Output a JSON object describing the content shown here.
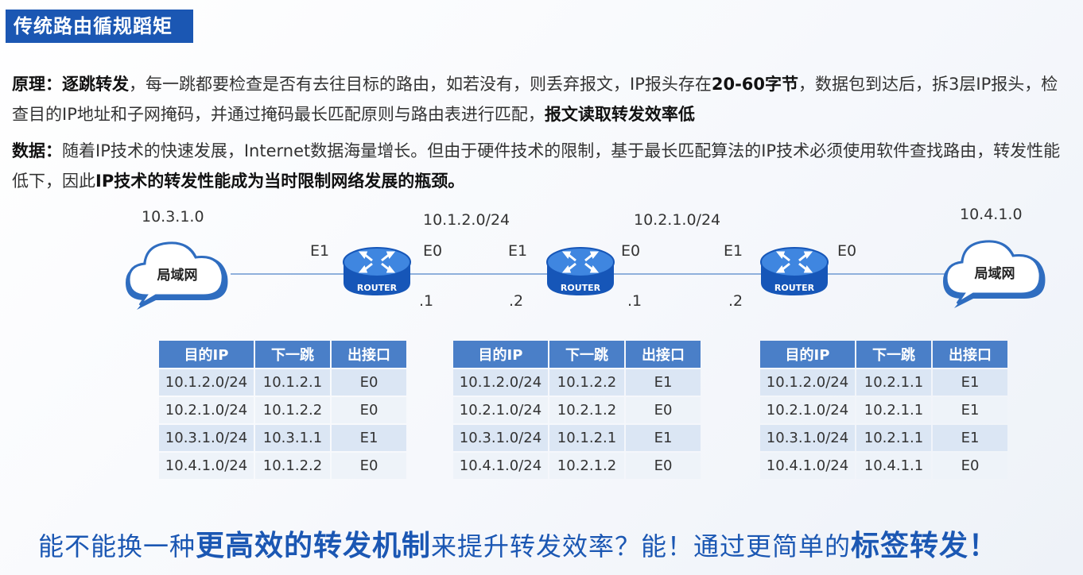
{
  "title": "传统路由循规蹈矩",
  "para1": {
    "lead": "原理：",
    "emph1": "逐跳转发",
    "t1": "，每一跳都要检查是否有去往目标的路由，如若没有，则丢弃报文，IP报头存在",
    "emph2": "20-60字节",
    "t2": "，数据包到达后，拆3层IP报头，检查目的IP地址和子网掩码，并通过掩码最长匹配原则与路由表进行匹配，",
    "emph3": "报文读取转发效率低"
  },
  "para2": {
    "lead": "数据：",
    "t1": "随着IP技术的快速发展，Internet数据海量增长。但由于硬件技术的限制，基于最长匹配算法的IP技术必须使用软件查找路由，转发性能低下，因此",
    "emph1": "IP技术的转发性能成为当时限制网络发展的瓶颈。"
  },
  "topology": {
    "left_net": "10.3.1.0",
    "right_net": "10.4.1.0",
    "mid_net1": "10.1.2.0/24",
    "mid_net2": "10.2.1.0/24",
    "cloud_label": "局域网",
    "router_label": "ROUTER",
    "r1_e1": "E1",
    "r1_e0": "E0",
    "r1_ip": ".1",
    "r2_e1": "E1",
    "r2_e0": "E0",
    "r2_ip_left": ".2",
    "r2_ip_right": ".1",
    "r3_e1": "E1",
    "r3_e0": "E0",
    "r3_ip": ".2"
  },
  "table_headers": [
    "目的IP",
    "下一跳",
    "出接口"
  ],
  "tables": [
    [
      [
        "10.1.2.0/24",
        "10.1.2.1",
        "E0"
      ],
      [
        "10.2.1.0/24",
        "10.1.2.2",
        "E0"
      ],
      [
        "10.3.1.0/24",
        "10.3.1.1",
        "E1"
      ],
      [
        "10.4.1.0/24",
        "10.1.2.2",
        "E0"
      ]
    ],
    [
      [
        "10.1.2.0/24",
        "10.1.2.2",
        "E1"
      ],
      [
        "10.2.1.0/24",
        "10.2.1.2",
        "E0"
      ],
      [
        "10.3.1.0/24",
        "10.1.2.1",
        "E1"
      ],
      [
        "10.4.1.0/24",
        "10.2.1.2",
        "E0"
      ]
    ],
    [
      [
        "10.1.2.0/24",
        "10.2.1.1",
        "E1"
      ],
      [
        "10.2.1.0/24",
        "10.2.1.1",
        "E1"
      ],
      [
        "10.3.1.0/24",
        "10.2.1.1",
        "E1"
      ],
      [
        "10.4.1.0/24",
        "10.4.1.1",
        "E0"
      ]
    ]
  ],
  "bottom": {
    "t1": "能不能换一种",
    "emph1": "更高效的转发机制",
    "t2": "来提升转发效率？能！通过更简单的",
    "emph2": "标签转发！"
  }
}
